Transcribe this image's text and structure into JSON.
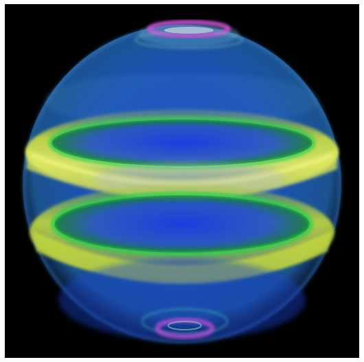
{
  "render": {
    "background_color": "#000000",
    "frame_color": "#ffffff",
    "object": "volume-rendered-sphere",
    "colors": {
      "shell": "#1e5fd6",
      "shell_deep": "#0a2fa8",
      "band_yellow": "#d8e83a",
      "band_green": "#2bd14a",
      "cap_magenta": "#d24fd8",
      "cap_cyan": "#54d6c8"
    },
    "visible_text": []
  }
}
